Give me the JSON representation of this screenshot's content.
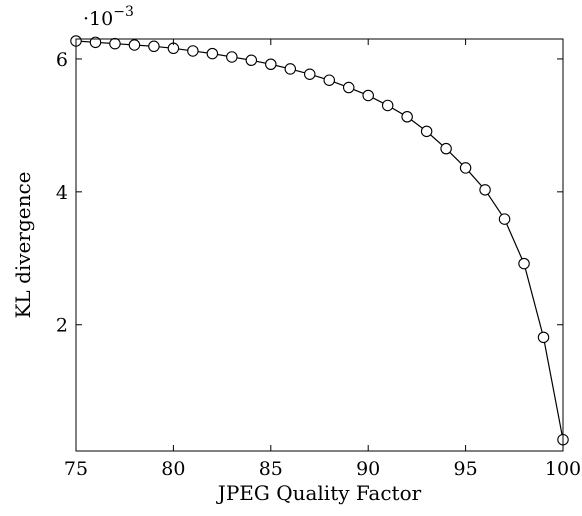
{
  "chart_data": {
    "type": "line",
    "xlabel": "JPEG Quality Factor",
    "ylabel": "KL divergence",
    "y_scale_label": {
      "base": "·10",
      "exponent": "−3"
    },
    "xlim": [
      75,
      100
    ],
    "ylim": [
      0.1,
      6.3
    ],
    "x_ticks": [
      "75",
      "80",
      "85",
      "90",
      "95",
      "100"
    ],
    "y_ticks": [
      "2",
      "4",
      "6"
    ],
    "marker": "open-circle",
    "series": [
      {
        "x": [
          75,
          76,
          77,
          78,
          79,
          80,
          81,
          82,
          83,
          84,
          85,
          86,
          87,
          88,
          89,
          90,
          91,
          92,
          93,
          94,
          95,
          96,
          97,
          98,
          99,
          100
        ],
        "y": [
          6.27,
          6.25,
          6.23,
          6.21,
          6.19,
          6.16,
          6.12,
          6.08,
          6.03,
          5.98,
          5.92,
          5.85,
          5.77,
          5.68,
          5.57,
          5.45,
          5.3,
          5.13,
          4.91,
          4.65,
          4.36,
          4.03,
          3.59,
          2.92,
          1.81,
          0.27
        ]
      }
    ],
    "grid": false,
    "legend": "none",
    "colors": {
      "line": "#000000",
      "marker_fill": "#ffffff"
    }
  }
}
